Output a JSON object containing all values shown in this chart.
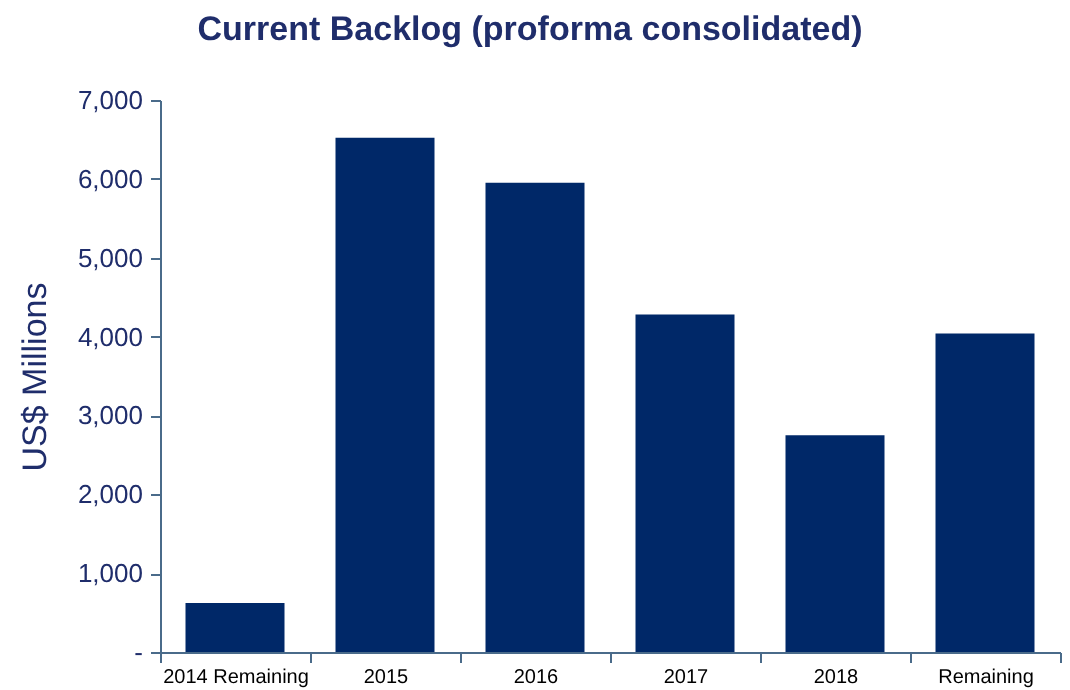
{
  "chart_data": {
    "type": "bar",
    "title": "Current Backlog (proforma consolidated)",
    "ylabel": "US$ Millions",
    "categories": [
      "2014 Remaining",
      "2015",
      "2016",
      "2017",
      "2018",
      "Remaining"
    ],
    "values": [
      620,
      6520,
      5950,
      4280,
      2750,
      4040
    ],
    "color": "#002868",
    "ylim": [
      0,
      7000
    ],
    "yticks": [
      {
        "value": 0,
        "label": "-"
      },
      {
        "value": 1000,
        "label": "1,000"
      },
      {
        "value": 2000,
        "label": "2,000"
      },
      {
        "value": 3000,
        "label": "3,000"
      },
      {
        "value": 4000,
        "label": "4,000"
      },
      {
        "value": 5000,
        "label": "5,000"
      },
      {
        "value": 6000,
        "label": "6,000"
      },
      {
        "value": 7000,
        "label": "7,000"
      }
    ],
    "grid": false
  }
}
